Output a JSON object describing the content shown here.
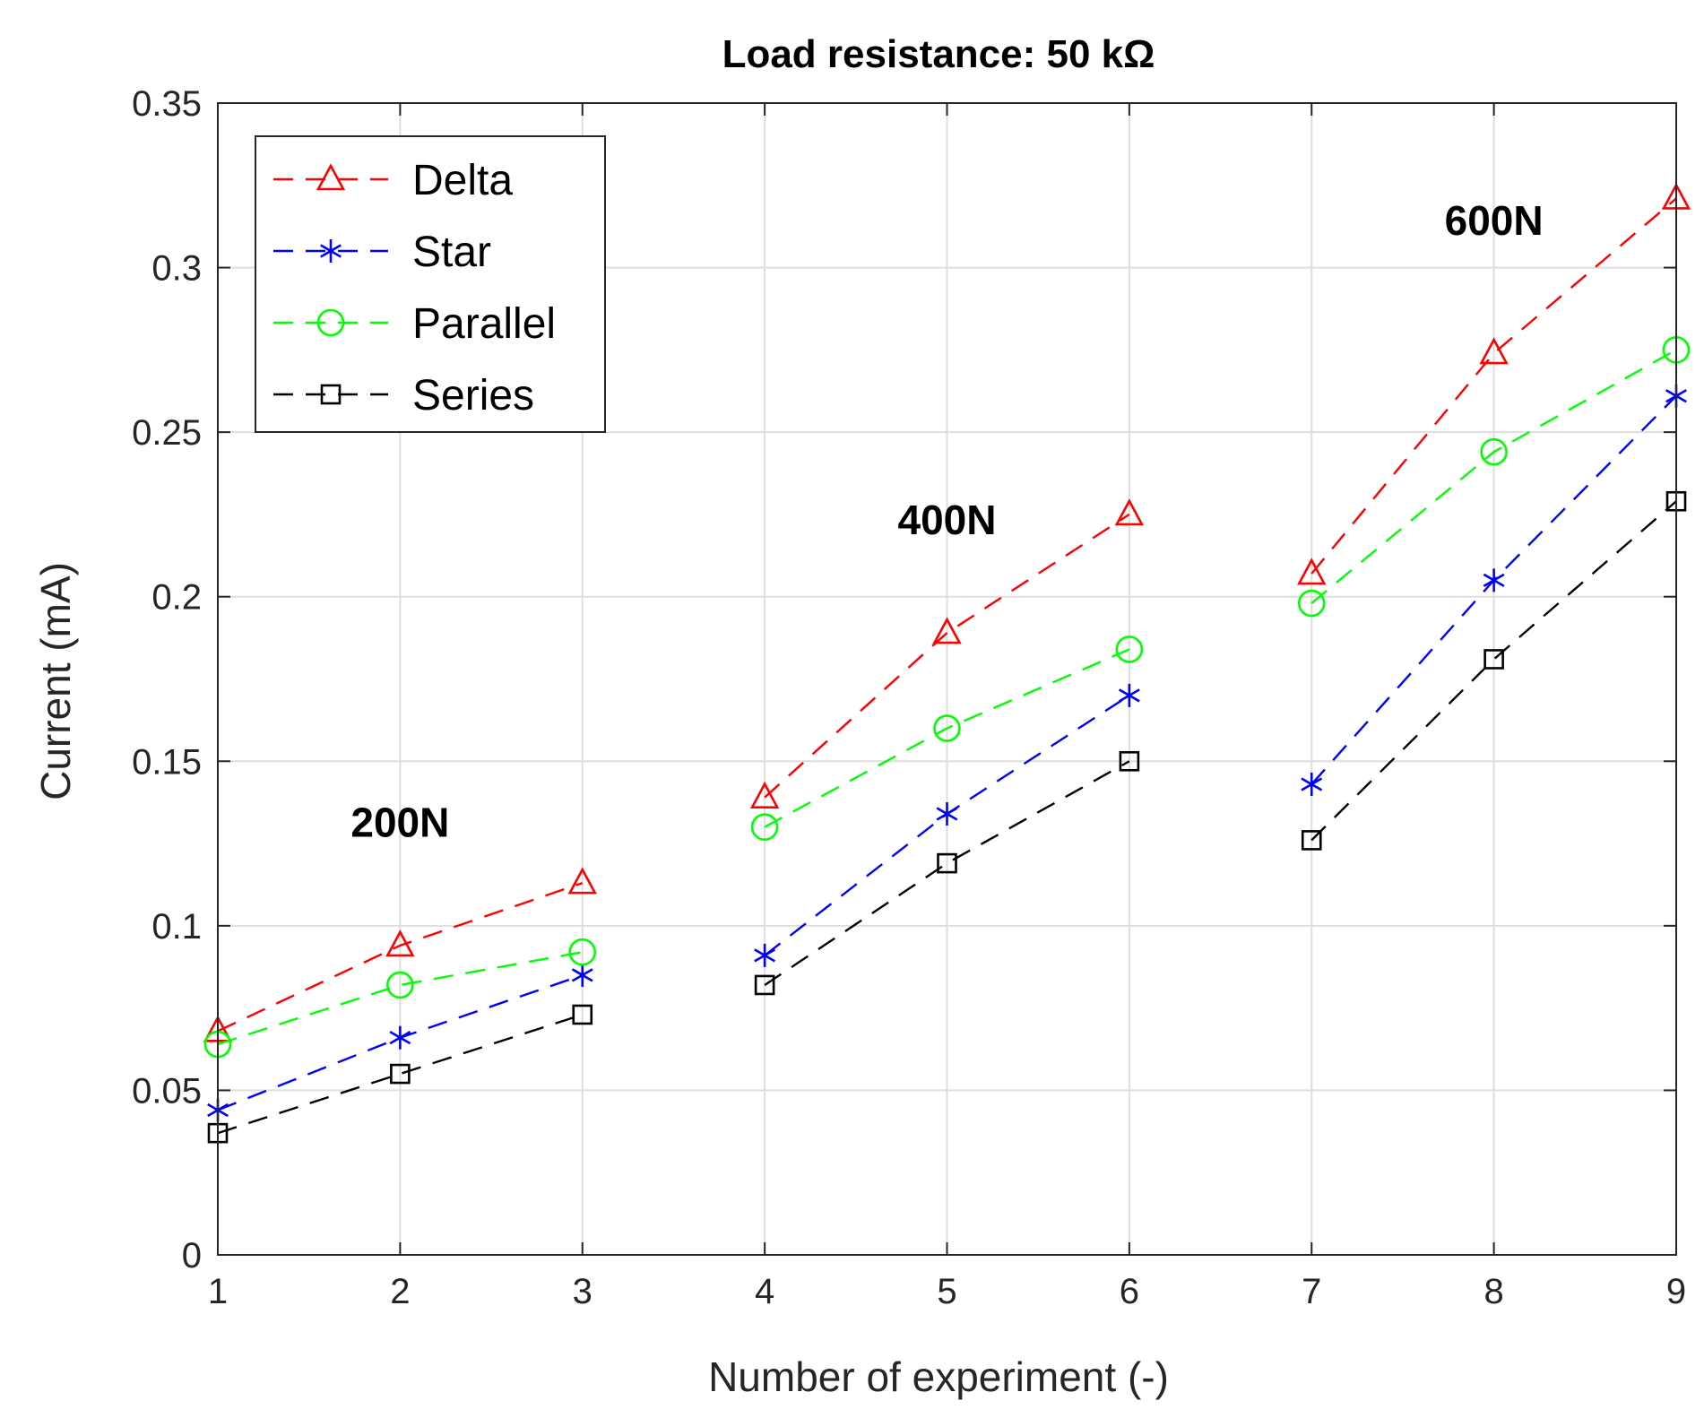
{
  "chart_data": {
    "type": "line",
    "title": "Load resistance: 50 kΩ",
    "xlabel": "Number of experiment (-)",
    "ylabel": "Current (mA)",
    "xlim": [
      1,
      9
    ],
    "ylim": [
      0,
      0.35
    ],
    "xticks": [
      1,
      2,
      3,
      4,
      5,
      6,
      7,
      8,
      9
    ],
    "yticks": [
      0,
      0.05,
      0.1,
      0.15,
      0.2,
      0.25,
      0.3,
      0.35
    ],
    "ytick_labels": [
      "0",
      "0.05",
      "0.1",
      "0.15",
      "0.2",
      "0.25",
      "0.3",
      "0.35"
    ],
    "grid": true,
    "legend_position": "top-left",
    "groups": [
      [
        1,
        2,
        3
      ],
      [
        4,
        5,
        6
      ],
      [
        7,
        8,
        9
      ]
    ],
    "series": [
      {
        "name": "Delta",
        "color": "#ff0000",
        "marker": "triangle",
        "x": [
          1,
          2,
          3,
          4,
          5,
          6,
          7,
          8,
          9
        ],
        "values": [
          0.068,
          0.094,
          0.113,
          0.139,
          0.189,
          0.225,
          0.207,
          0.274,
          0.321
        ]
      },
      {
        "name": "Star",
        "color": "#0000ff",
        "marker": "asterisk",
        "x": [
          1,
          2,
          3,
          4,
          5,
          6,
          7,
          8,
          9
        ],
        "values": [
          0.044,
          0.066,
          0.085,
          0.091,
          0.134,
          0.17,
          0.143,
          0.205,
          0.261
        ]
      },
      {
        "name": "Parallel",
        "color": "#00ff00",
        "marker": "circle",
        "x": [
          1,
          2,
          3,
          4,
          5,
          6,
          7,
          8,
          9
        ],
        "values": [
          0.064,
          0.082,
          0.092,
          0.13,
          0.16,
          0.184,
          0.198,
          0.244,
          0.275
        ]
      },
      {
        "name": "Series",
        "color": "#000000",
        "marker": "square",
        "x": [
          1,
          2,
          3,
          4,
          5,
          6,
          7,
          8,
          9
        ],
        "values": [
          0.037,
          0.055,
          0.073,
          0.082,
          0.119,
          0.15,
          0.126,
          0.181,
          0.229
        ]
      }
    ],
    "annotations": [
      {
        "text": "200N",
        "x": 2.0,
        "y": 0.127
      },
      {
        "text": "400N",
        "x": 5.0,
        "y": 0.219
      },
      {
        "text": "600N",
        "x": 8.0,
        "y": 0.31
      }
    ]
  }
}
